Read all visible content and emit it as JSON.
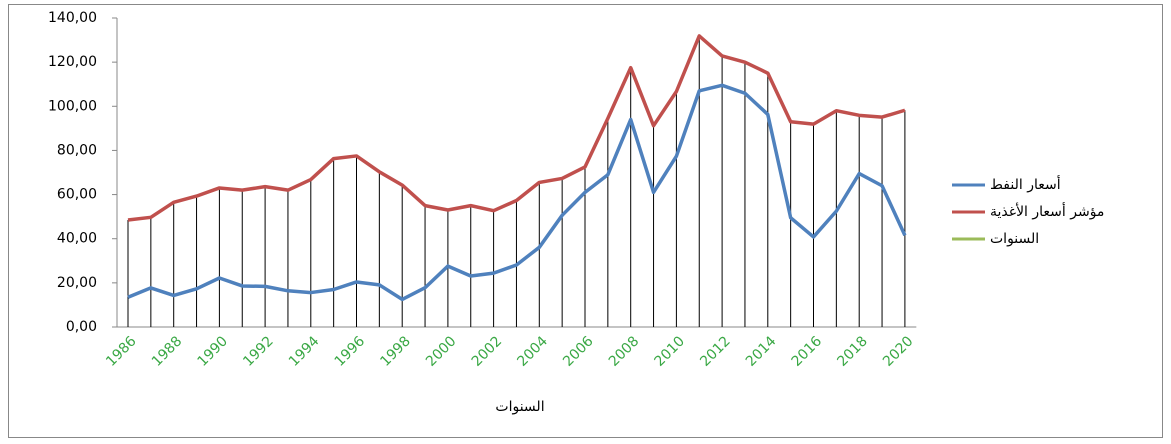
{
  "chart_data": {
    "type": "line",
    "x_label": "السنوات",
    "categories": [
      "1986",
      null,
      "1988",
      null,
      "1990",
      null,
      "1992",
      null,
      "1994",
      null,
      "1996",
      null,
      "1998",
      null,
      "2000",
      null,
      "2002",
      null,
      "2004",
      null,
      "2006",
      null,
      "2008",
      null,
      "2010",
      null,
      "2012",
      null,
      "2014",
      null,
      "2016",
      null,
      "2018",
      null,
      "2020"
    ],
    "series": [
      {
        "name": "أسعار النفط",
        "color": "#4f81bd",
        "values": [
          13.5,
          17.7,
          14.3,
          17.3,
          22.2,
          18.6,
          18.4,
          16.4,
          15.6,
          17.0,
          20.4,
          19.1,
          12.5,
          17.8,
          27.6,
          23.1,
          24.4,
          28.1,
          36.1,
          50.6,
          61.0,
          69.0,
          94.0,
          61.0,
          77.4,
          107.0,
          109.5,
          105.9,
          96.3,
          49.5,
          40.8,
          52.5,
          69.5,
          64.0,
          41.5
        ]
      },
      {
        "name": "مؤشر أسعار الأغذية",
        "color": "#c0504d",
        "values": [
          48.5,
          49.7,
          56.5,
          59.3,
          63.0,
          62.0,
          63.6,
          62.0,
          66.8,
          76.3,
          77.5,
          70.3,
          64.3,
          55.0,
          53.0,
          55.0,
          52.7,
          57.3,
          65.5,
          67.3,
          72.5,
          94.5,
          117.5,
          91.2,
          106.7,
          131.9,
          122.8,
          120.0,
          115.0,
          93.0,
          91.9,
          98.0,
          95.9,
          95.1,
          98.2
        ]
      },
      {
        "name": "السنوات",
        "color": "#9bbb59",
        "values": [
          null,
          null,
          null,
          null,
          null,
          null,
          null,
          null,
          null,
          null,
          null,
          null,
          null,
          null,
          null,
          null,
          null,
          null,
          null,
          null,
          null,
          null,
          null,
          null,
          null,
          null,
          null,
          null,
          null,
          null,
          null,
          null,
          null,
          null,
          null
        ]
      }
    ],
    "ylim": [
      0,
      140
    ],
    "yticks": [
      {
        "value": 0,
        "label": "0,00"
      },
      {
        "value": 20,
        "label": "20,00"
      },
      {
        "value": 40,
        "label": "40,00"
      },
      {
        "value": 60,
        "label": "60,00"
      },
      {
        "value": 80,
        "label": "80,00"
      },
      {
        "value": 100,
        "label": "100,00"
      },
      {
        "value": 120,
        "label": "120,00"
      },
      {
        "value": 140,
        "label": "140,00"
      }
    ],
    "drop_lines": true,
    "x_label_color": "#3aa845"
  }
}
